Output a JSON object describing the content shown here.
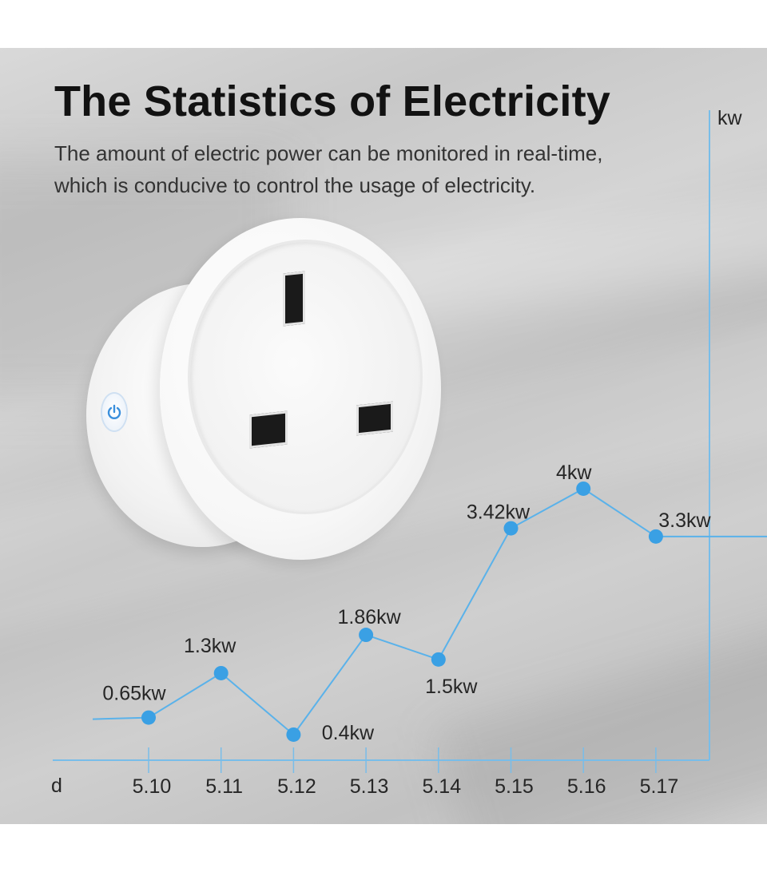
{
  "heading": {
    "title": "The Statistics of Electricity",
    "subtitle_line1": "The amount of electric power can be monitored in real-time,",
    "subtitle_line2": "which is conducive to control the usage of electricity."
  },
  "product": {
    "power_icon": "power-icon"
  },
  "colors": {
    "accent": "#3aa0e4",
    "axis": "#78bde9"
  },
  "chart_data": {
    "type": "line",
    "xlabel": "d",
    "ylabel": "kw",
    "categories": [
      "5.10",
      "5.11",
      "5.12",
      "5.13",
      "5.14",
      "5.15",
      "5.16",
      "5.17"
    ],
    "values": [
      0.65,
      1.3,
      0.4,
      1.86,
      1.5,
      3.42,
      4,
      3.3
    ],
    "data_labels": [
      "0.65kw",
      "1.3kw",
      "0.4kw",
      "1.86kw",
      "1.5kw",
      "3.42kw",
      "4kw",
      "3.3kw"
    ],
    "grid": false,
    "legend": "none"
  }
}
